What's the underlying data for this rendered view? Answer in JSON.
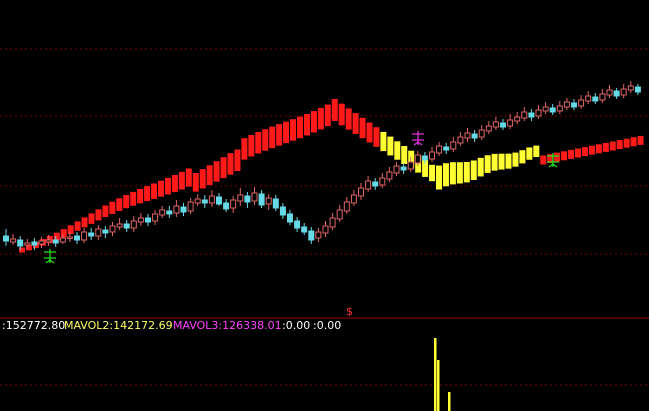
{
  "colors": {
    "background": "#000000",
    "grid": "#7a0000",
    "divider": "#9a0000",
    "candle_up": "#e06666",
    "candle_down": "#66d9e6",
    "band_up": "#ff1a1a",
    "band_down": "#ffff33",
    "buy_signal": "#22dd22",
    "sell_signal": "#dd33dd",
    "marker": "#ff3333",
    "text_white": "#ffffff",
    "text_yellow": "#ffff66",
    "text_magenta": "#ff44ff",
    "volume": "#ffff33"
  },
  "volume_legend": {
    "mavol1": ":152772.80",
    "mavol2": "MAVOL2:142172.69",
    "mavol3": "MAVOL3:126338.01",
    "v4": ":0.00",
    "v5": ":0.00"
  },
  "marker_label": "$",
  "chart_data": {
    "type": "candlestick",
    "price_grid": "on",
    "candles": [
      [
        236,
        241,
        229,
        246
      ],
      [
        242,
        239,
        234,
        245
      ],
      [
        240,
        246,
        236,
        250
      ],
      [
        245,
        243,
        239,
        249
      ],
      [
        242,
        245,
        238,
        250
      ],
      [
        244,
        241,
        237,
        248
      ],
      [
        242,
        240,
        235,
        246
      ],
      [
        240,
        243,
        236,
        247
      ],
      [
        242,
        238,
        234,
        244
      ],
      [
        238,
        237,
        232,
        242
      ],
      [
        236,
        240,
        232,
        244
      ],
      [
        240,
        232,
        228,
        243
      ],
      [
        233,
        236,
        228,
        240
      ],
      [
        236,
        229,
        225,
        240
      ],
      [
        230,
        233,
        226,
        238
      ],
      [
        232,
        226,
        222,
        236
      ],
      [
        227,
        224,
        218,
        230
      ],
      [
        224,
        228,
        220,
        232
      ],
      [
        228,
        221,
        216,
        232
      ],
      [
        222,
        218,
        213,
        226
      ],
      [
        218,
        222,
        214,
        226
      ],
      [
        221,
        214,
        210,
        225
      ],
      [
        215,
        210,
        206,
        218
      ],
      [
        211,
        214,
        206,
        218
      ],
      [
        213,
        206,
        200,
        217
      ],
      [
        207,
        212,
        203,
        216
      ],
      [
        211,
        202,
        198,
        214
      ],
      [
        203,
        199,
        194,
        206
      ],
      [
        200,
        203,
        195,
        208
      ],
      [
        203,
        196,
        190,
        207
      ],
      [
        197,
        204,
        193,
        206
      ],
      [
        203,
        209,
        199,
        212
      ],
      [
        208,
        200,
        196,
        213
      ],
      [
        201,
        195,
        188,
        206
      ],
      [
        196,
        202,
        192,
        208
      ],
      [
        201,
        193,
        187,
        205
      ],
      [
        194,
        205,
        190,
        208
      ],
      [
        204,
        198,
        194,
        210
      ],
      [
        199,
        208,
        195,
        211
      ],
      [
        207,
        215,
        203,
        219
      ],
      [
        214,
        222,
        210,
        225
      ],
      [
        221,
        228,
        217,
        232
      ],
      [
        227,
        232,
        223,
        235
      ],
      [
        231,
        240,
        227,
        244
      ],
      [
        238,
        232,
        228,
        242
      ],
      [
        233,
        226,
        221,
        237
      ],
      [
        227,
        218,
        213,
        230
      ],
      [
        219,
        210,
        205,
        222
      ],
      [
        211,
        202,
        197,
        214
      ],
      [
        203,
        195,
        190,
        206
      ],
      [
        196,
        188,
        183,
        200
      ],
      [
        189,
        181,
        176,
        192
      ],
      [
        182,
        186,
        178,
        190
      ],
      [
        185,
        178,
        173,
        188
      ],
      [
        179,
        172,
        167,
        182
      ],
      [
        173,
        166,
        162,
        176
      ],
      [
        167,
        170,
        163,
        174
      ],
      [
        169,
        162,
        157,
        172
      ],
      [
        163,
        155,
        151,
        166
      ],
      [
        156,
        160,
        152,
        164
      ],
      [
        159,
        152,
        147,
        162
      ],
      [
        153,
        146,
        142,
        156
      ],
      [
        147,
        150,
        143,
        154
      ],
      [
        149,
        142,
        137,
        152
      ],
      [
        143,
        137,
        132,
        146
      ],
      [
        138,
        133,
        128,
        142
      ],
      [
        134,
        138,
        130,
        142
      ],
      [
        137,
        130,
        125,
        140
      ],
      [
        131,
        126,
        121,
        134
      ],
      [
        127,
        122,
        117,
        130
      ],
      [
        123,
        127,
        119,
        130
      ],
      [
        126,
        120,
        114,
        129
      ],
      [
        121,
        117,
        112,
        124
      ],
      [
        118,
        112,
        107,
        121
      ],
      [
        113,
        117,
        109,
        121
      ],
      [
        116,
        110,
        105,
        119
      ],
      [
        111,
        107,
        102,
        114
      ],
      [
        108,
        112,
        104,
        115
      ],
      [
        111,
        106,
        101,
        114
      ],
      [
        107,
        102,
        98,
        110
      ],
      [
        103,
        107,
        99,
        110
      ],
      [
        106,
        100,
        95,
        109
      ],
      [
        101,
        96,
        91,
        104
      ],
      [
        97,
        101,
        93,
        104
      ],
      [
        100,
        94,
        89,
        103
      ],
      [
        95,
        90,
        85,
        98
      ],
      [
        91,
        96,
        88,
        99
      ],
      [
        95,
        89,
        84,
        98
      ],
      [
        90,
        86,
        81,
        93
      ],
      [
        87,
        92,
        84,
        95
      ]
    ]
  }
}
